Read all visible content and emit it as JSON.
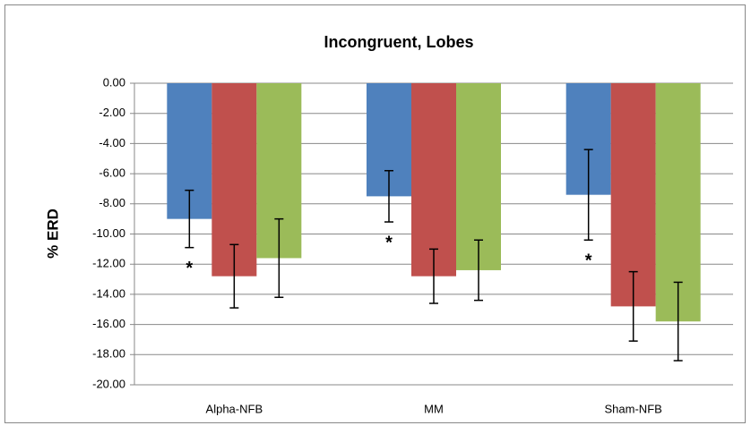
{
  "chart_data": {
    "type": "bar",
    "title": "Incongruent, Lobes",
    "y_label": "% ERD",
    "categories": [
      "Alpha-NFB",
      "MM",
      "Sham-NFB"
    ],
    "series": [
      {
        "color": "#4f81bd",
        "values": [
          -9.0,
          -7.5,
          -7.4
        ],
        "errors": [
          1.9,
          1.7,
          3.0
        ]
      },
      {
        "color": "#c0504d",
        "values": [
          -12.8,
          -12.8,
          -14.8
        ],
        "errors": [
          2.1,
          1.8,
          2.3
        ]
      },
      {
        "color": "#9bbb59",
        "values": [
          -11.6,
          -12.4,
          -15.8
        ],
        "errors": [
          2.6,
          2.0,
          2.6
        ]
      }
    ],
    "annotations": [
      "*",
      "*",
      "*"
    ],
    "ylim": [
      -20,
      0
    ],
    "yticks": [
      {
        "value": 0,
        "label": "0.00"
      },
      {
        "value": -2,
        "label": "-2.00"
      },
      {
        "value": -4,
        "label": "-4.00"
      },
      {
        "value": -6,
        "label": "-6.00"
      },
      {
        "value": -8,
        "label": "-8.00"
      },
      {
        "value": -10,
        "label": "-10.00"
      },
      {
        "value": -12,
        "label": "-12.00"
      },
      {
        "value": -14,
        "label": "-14.00"
      },
      {
        "value": -16,
        "label": "-16.00"
      },
      {
        "value": -18,
        "label": "-18.00"
      },
      {
        "value": -20,
        "label": "-20.00"
      }
    ],
    "grid": true
  }
}
